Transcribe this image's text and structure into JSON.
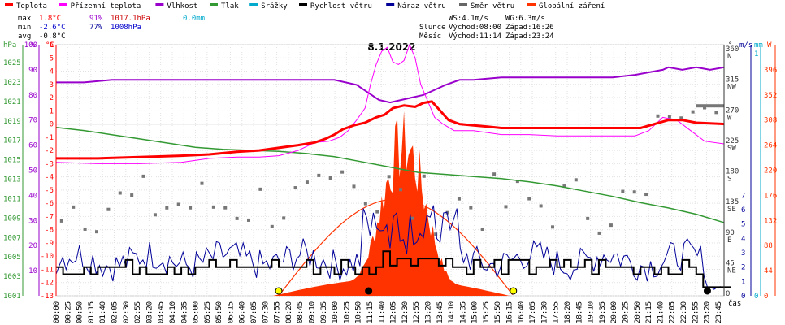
{
  "chart_data": {
    "type": "line",
    "title": "8.1.2022",
    "legend": [
      {
        "label": "Teplota",
        "color": "#ff0000"
      },
      {
        "label": "Přízemní teplota",
        "color": "#ff00ff"
      },
      {
        "label": "Vlhkost",
        "color": "#9900cc"
      },
      {
        "label": "Tlak",
        "color": "#339933"
      },
      {
        "label": "Srážky",
        "color": "#00aacc"
      },
      {
        "label": "Rychlost větru",
        "color": "#000000"
      },
      {
        "label": "Náraz větru",
        "color": "#000099"
      },
      {
        "label": "Směr větru",
        "color": "#666666"
      },
      {
        "label": "Globální záření",
        "color": "#ff3300"
      }
    ],
    "stats": {
      "max": {
        "label": "max",
        "temp": "1.8°C",
        "hum": "91%",
        "press": "1017.1hPa",
        "rain": "0.0mm"
      },
      "min": {
        "label": "min",
        "temp": "-2.6°C",
        "hum": "77%",
        "press": "1008hPa"
      },
      "avg": {
        "label": "avg",
        "temp": "-0.8°C"
      }
    },
    "info": {
      "ws": "WS:4.1m/s",
      "wg": "WG:6.3m/s",
      "sun_label": "Slunce",
      "sunrise": "Východ:08:00",
      "sunset": "Západ:16:26",
      "moon_label": "Měsíc",
      "moonrise": "Východ:11:14",
      "moonset": "Západ:23:24"
    },
    "axis_units": {
      "hpa": "hPa",
      "pct": "%",
      "degc": "°C",
      "deg": "°",
      "ms": "m/s",
      "mm": "mm",
      "w": "W",
      "time": "čas"
    },
    "y_hpa_ticks": [
      "1025",
      "1023",
      "1021",
      "1019",
      "1017",
      "1015",
      "1013",
      "1011",
      "1009",
      "1007",
      "1005",
      "1003",
      "1001"
    ],
    "y_pct_ticks": [
      "100",
      "90",
      "80",
      "70",
      "60",
      "50",
      "40",
      "30",
      "20",
      "10"
    ],
    "y_temp_ticks": [
      "6",
      "5",
      "4",
      "3",
      "2",
      "1",
      "0",
      "-1",
      "-2",
      "-3",
      "-4",
      "-5",
      "-6",
      "-7",
      "-8",
      "-9",
      "-10",
      "-11",
      "-12",
      "-13"
    ],
    "y_deg_ticks": [
      [
        "360",
        "N"
      ],
      [
        "315",
        "NW"
      ],
      [
        "270",
        "W"
      ],
      [
        "225",
        "SW"
      ],
      [
        "180",
        "S"
      ],
      [
        "135",
        "SE"
      ],
      [
        "90",
        "E"
      ],
      [
        "45",
        "NE"
      ],
      [
        "0",
        ""
      ]
    ],
    "y_ms_ticks": [
      "7",
      "6",
      "5",
      "4",
      "3",
      "2",
      "1",
      "0"
    ],
    "y_mm_ticks": [
      "1",
      "0"
    ],
    "y_w_ticks": [
      "396",
      "352",
      "308",
      "264",
      "220",
      "176",
      "132",
      "88",
      "44",
      "0"
    ],
    "x_ticks": [
      "00:00",
      "00:25",
      "00:50",
      "01:15",
      "01:40",
      "02:05",
      "02:30",
      "02:55",
      "03:20",
      "03:45",
      "04:10",
      "04:35",
      "05:00",
      "05:25",
      "05:50",
      "06:15",
      "06:40",
      "07:05",
      "07:30",
      "07:55",
      "08:20",
      "08:45",
      "09:10",
      "09:35",
      "10:00",
      "10:25",
      "10:50",
      "11:15",
      "11:40",
      "12:05",
      "12:30",
      "12:55",
      "13:20",
      "13:45",
      "14:10",
      "14:35",
      "15:00",
      "15:25",
      "15:50",
      "16:15",
      "16:40",
      "17:05",
      "17:30",
      "17:55",
      "18:20",
      "18:45",
      "19:10",
      "19:35",
      "20:00",
      "20:25",
      "20:50",
      "21:15",
      "21:40",
      "22:05",
      "22:30",
      "22:55",
      "23:20",
      "23:45"
    ],
    "series": {
      "temperature": [
        [
          0,
          -2.6
        ],
        [
          1.5,
          -2.6
        ],
        [
          3,
          -2.5
        ],
        [
          4.5,
          -2.4
        ],
        [
          5.5,
          -2.3
        ],
        [
          6.5,
          -2.1
        ],
        [
          7.3,
          -2.0
        ],
        [
          8,
          -1.8
        ],
        [
          8.7,
          -1.6
        ],
        [
          9.3,
          -1.4
        ],
        [
          9.7,
          -1.1
        ],
        [
          10,
          -0.8
        ],
        [
          10.3,
          -0.4
        ],
        [
          10.7,
          -0.1
        ],
        [
          11.1,
          0.1
        ],
        [
          11.5,
          0.5
        ],
        [
          11.8,
          0.7
        ],
        [
          12.1,
          1.2
        ],
        [
          12.5,
          1.4
        ],
        [
          12.9,
          1.3
        ],
        [
          13.2,
          1.6
        ],
        [
          13.5,
          1.7
        ],
        [
          13.8,
          1.0
        ],
        [
          14.1,
          0.3
        ],
        [
          14.5,
          0.0
        ],
        [
          15,
          -0.1
        ],
        [
          15.5,
          -0.2
        ],
        [
          16,
          -0.3
        ],
        [
          17,
          -0.3
        ],
        [
          18,
          -0.3
        ],
        [
          19,
          -0.3
        ],
        [
          20,
          -0.3
        ],
        [
          21,
          -0.3
        ],
        [
          22,
          0.3
        ],
        [
          22.5,
          0.3
        ],
        [
          23,
          0.1
        ],
        [
          24,
          0.0
        ]
      ],
      "ground_temp": [
        [
          0,
          -2.9
        ],
        [
          1.5,
          -3.0
        ],
        [
          3,
          -3.0
        ],
        [
          4.5,
          -2.9
        ],
        [
          5.5,
          -2.6
        ],
        [
          6.5,
          -2.5
        ],
        [
          7.3,
          -2.5
        ],
        [
          8,
          -2.4
        ],
        [
          8.7,
          -2.0
        ],
        [
          9.3,
          -1.4
        ],
        [
          9.8,
          -1.3
        ],
        [
          10.2,
          -1.0
        ],
        [
          10.5,
          -0.5
        ],
        [
          10.8,
          0.3
        ],
        [
          11.1,
          1.2
        ],
        [
          11.3,
          3.0
        ],
        [
          11.5,
          4.5
        ],
        [
          11.7,
          5.5
        ],
        [
          11.9,
          5.8
        ],
        [
          12.1,
          4.7
        ],
        [
          12.3,
          4.5
        ],
        [
          12.5,
          4.8
        ],
        [
          12.7,
          6.0
        ],
        [
          12.9,
          5.0
        ],
        [
          13.1,
          3.0
        ],
        [
          13.3,
          2.0
        ],
        [
          13.6,
          0.5
        ],
        [
          13.9,
          0.0
        ],
        [
          14.3,
          -0.5
        ],
        [
          15,
          -0.5
        ],
        [
          16,
          -0.8
        ],
        [
          17,
          -0.8
        ],
        [
          18,
          -0.9
        ],
        [
          19,
          -0.9
        ],
        [
          20,
          -0.9
        ],
        [
          20.8,
          -0.9
        ],
        [
          21.3,
          -0.5
        ],
        [
          21.8,
          0.5
        ],
        [
          22.3,
          0.3
        ],
        [
          22.8,
          -0.5
        ],
        [
          23.3,
          -1.3
        ],
        [
          24,
          -1.5
        ]
      ],
      "humidity": [
        [
          0,
          85
        ],
        [
          1,
          85
        ],
        [
          2,
          86
        ],
        [
          3,
          86
        ],
        [
          4,
          86
        ],
        [
          5,
          86
        ],
        [
          6,
          86
        ],
        [
          7,
          86
        ],
        [
          8,
          86
        ],
        [
          9,
          86
        ],
        [
          10,
          86
        ],
        [
          10.8,
          84
        ],
        [
          11.2,
          81
        ],
        [
          11.6,
          78
        ],
        [
          12,
          77
        ],
        [
          12.4,
          78
        ],
        [
          12.8,
          79
        ],
        [
          13.2,
          80
        ],
        [
          13.6,
          82
        ],
        [
          14,
          84
        ],
        [
          14.5,
          86
        ],
        [
          15,
          86
        ],
        [
          16,
          87
        ],
        [
          17,
          87
        ],
        [
          18,
          87
        ],
        [
          19,
          87
        ],
        [
          20,
          87
        ],
        [
          20.8,
          88
        ],
        [
          21.3,
          89
        ],
        [
          21.8,
          90
        ],
        [
          22,
          91
        ],
        [
          22.5,
          90
        ],
        [
          23,
          91
        ],
        [
          23.5,
          90
        ],
        [
          24,
          91
        ]
      ],
      "pressure": [
        [
          0,
          1017.1
        ],
        [
          1,
          1016.8
        ],
        [
          2,
          1016.4
        ],
        [
          3,
          1016.0
        ],
        [
          4,
          1015.6
        ],
        [
          5,
          1015.2
        ],
        [
          6,
          1015.0
        ],
        [
          7,
          1014.9
        ],
        [
          8,
          1014.8
        ],
        [
          9,
          1014.6
        ],
        [
          10,
          1014.3
        ],
        [
          11,
          1013.8
        ],
        [
          12,
          1013.3
        ],
        [
          13,
          1012.8
        ],
        [
          14,
          1012.6
        ],
        [
          15,
          1012.4
        ],
        [
          16,
          1012.2
        ],
        [
          17,
          1011.9
        ],
        [
          18,
          1011.5
        ],
        [
          19,
          1011.0
        ],
        [
          20,
          1010.5
        ],
        [
          21,
          1009.9
        ],
        [
          22,
          1009.4
        ],
        [
          23,
          1008.8
        ],
        [
          24,
          1008.0
        ]
      ],
      "sun_elevation_peak": 396
    },
    "ylim_temp": [
      -13,
      6
    ],
    "ylim_hpa": [
      1001,
      1025
    ],
    "ylim_pct": [
      0,
      100
    ],
    "ylim_w": [
      0,
      440
    ],
    "ylim_ms": [
      0,
      7
    ],
    "xlim_hours": [
      0,
      24
    ]
  }
}
